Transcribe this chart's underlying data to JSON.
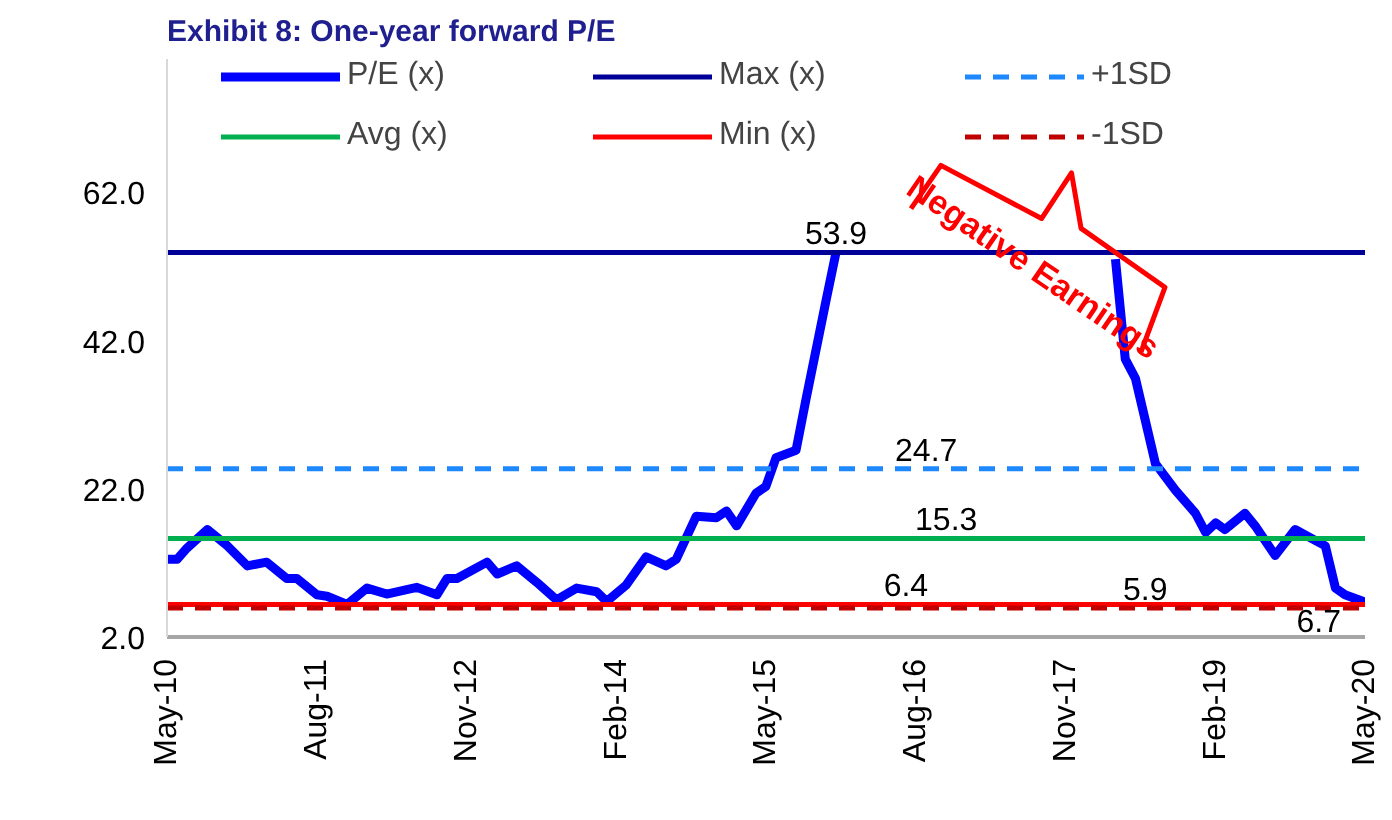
{
  "chart_data": {
    "type": "line",
    "title": "Exhibit 8: One-year forward P/E",
    "xlim": [
      "2010-05",
      "2020-05"
    ],
    "xticks": [
      {
        "value": "2010-05",
        "label": "May-10"
      },
      {
        "value": "2011-08",
        "label": "Aug-11"
      },
      {
        "value": "2012-11",
        "label": "Nov-12"
      },
      {
        "value": "2014-02",
        "label": "Feb-14"
      },
      {
        "value": "2015-05",
        "label": "May-15"
      },
      {
        "value": "2016-08",
        "label": "Aug-16"
      },
      {
        "value": "2017-11",
        "label": "Nov-17"
      },
      {
        "value": "2019-02",
        "label": "Feb-19"
      },
      {
        "value": "2020-05",
        "label": "May-20"
      }
    ],
    "ylim": [
      2,
      80
    ],
    "yticks": [
      {
        "value": 2,
        "label": "2.0"
      },
      {
        "value": 22,
        "label": "22.0"
      },
      {
        "value": 42,
        "label": "42.0"
      },
      {
        "value": 62,
        "label": "62.0"
      }
    ],
    "grid": false,
    "legend": "top",
    "marker": "none",
    "series": [
      {
        "name": "P/E (x)",
        "color": "#0000ff",
        "line_style": "solid",
        "x": [
          "2010-05",
          "2010-06",
          "2010-07",
          "2010-09",
          "2010-11",
          "2011-01",
          "2011-03",
          "2011-05",
          "2011-06",
          "2011-08",
          "2011-09",
          "2011-11",
          "2012-01",
          "2012-03",
          "2012-05",
          "2012-06",
          "2012-08",
          "2012-09",
          "2012-10",
          "2013-01",
          "2013-02",
          "2013-04",
          "2013-06",
          "2013-08",
          "2013-10",
          "2013-12",
          "2014-01",
          "2014-03",
          "2014-05",
          "2014-07",
          "2014-08",
          "2014-10",
          "2014-12",
          "2015-01",
          "2015-02",
          "2015-04",
          "2015-05",
          "2015-06",
          "2015-08",
          "2015-09",
          "2015-11",
          "2015-12",
          "2016-01",
          "2018-04",
          "2018-05",
          "2018-06",
          "2018-08",
          "2018-10",
          "2018-12",
          "2019-01",
          "2019-02",
          "2019-03",
          "2019-05",
          "2019-06",
          "2019-08",
          "2019-10",
          "2020-01",
          "2020-02",
          "2020-03",
          "2020-05"
        ],
        "values": [
          12.5,
          12.5,
          14.0,
          16.5,
          14.3,
          11.6,
          12.1,
          9.9,
          9.9,
          7.7,
          7.5,
          6.4,
          8.6,
          7.8,
          8.4,
          8.7,
          7.7,
          9.9,
          9.9,
          12.1,
          10.5,
          11.6,
          9.4,
          7.0,
          8.6,
          8.1,
          6.8,
          9.0,
          12.8,
          11.6,
          12.5,
          18.3,
          18.1,
          19.0,
          17.0,
          21.4,
          22.3,
          26.2,
          27.2,
          34.2,
          47.5,
          53.9,
          null,
          53.0,
          39.5,
          36.9,
          25.4,
          21.8,
          18.7,
          16.1,
          17.4,
          16.5,
          18.7,
          17.0,
          13.0,
          16.5,
          14.3,
          8.6,
          7.7,
          6.7
        ]
      },
      {
        "name": "Avg (x)",
        "color": "#00b050",
        "line_style": "solid",
        "x": [
          "2010-05",
          "2020-05"
        ],
        "values": [
          15.3,
          15.3
        ]
      },
      {
        "name": "Max (x)",
        "color": "#000099",
        "line_style": "solid",
        "x": [
          "2010-05",
          "2020-05"
        ],
        "values": [
          53.9,
          53.9
        ]
      },
      {
        "name": "Min (x)",
        "color": "#ff0000",
        "line_style": "solid",
        "x": [
          "2010-05",
          "2020-05"
        ],
        "values": [
          6.4,
          6.4
        ]
      },
      {
        "name": "+1SD",
        "color": "#1e88ff",
        "line_style": "dashed",
        "x": [
          "2010-05",
          "2020-05"
        ],
        "values": [
          24.7,
          24.7
        ]
      },
      {
        "name": "-1SD",
        "color": "#c00000",
        "line_style": "dashed",
        "x": [
          "2010-05",
          "2020-05"
        ],
        "values": [
          5.9,
          5.9
        ]
      }
    ],
    "annotations": [
      {
        "text": "53.9",
        "x": "2015-12",
        "y": 53.9
      },
      {
        "text": "24.7",
        "x": "2016-09",
        "y": 24.7
      },
      {
        "text": "15.3",
        "x": "2016-11",
        "y": 15.3
      },
      {
        "text": "6.4",
        "x": "2016-07",
        "y": 6.4
      },
      {
        "text": "5.9",
        "x": "2018-07",
        "y": 5.9
      },
      {
        "text": "6.7",
        "x": "2020-05",
        "y": 6.7
      },
      "Negative Earnings"
    ]
  }
}
